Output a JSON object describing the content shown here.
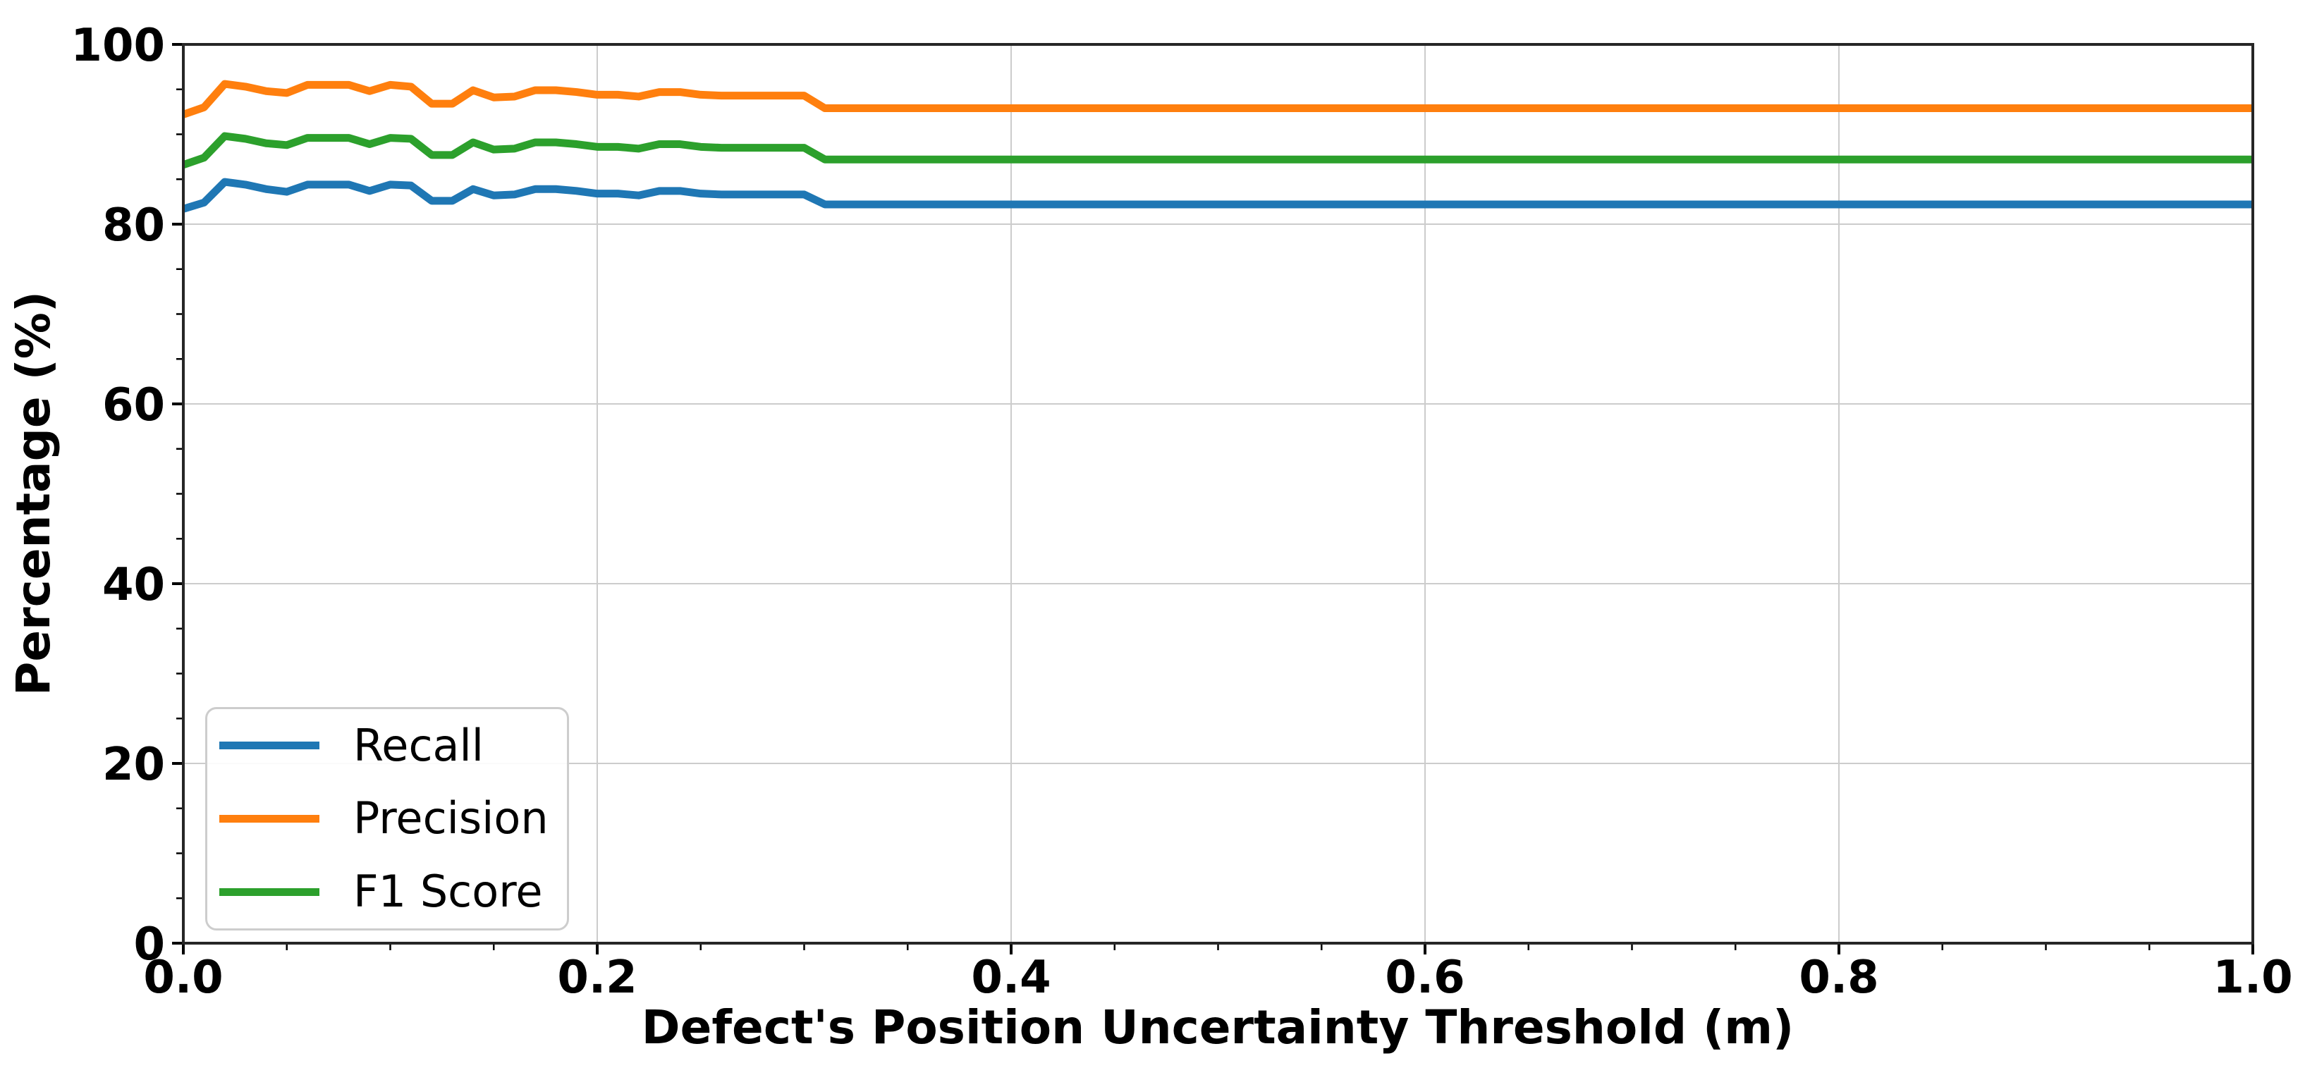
{
  "chart_data": {
    "type": "line",
    "title": "",
    "xlabel": "Defect's Position Uncertainty Threshold (m)",
    "ylabel": "Percentage (%)",
    "xlim": [
      0.0,
      1.0
    ],
    "ylim": [
      0,
      100
    ],
    "xticks": [
      0.0,
      0.2,
      0.4,
      0.6,
      0.8,
      1.0
    ],
    "xtick_labels": [
      "0.0",
      "0.2",
      "0.4",
      "0.6",
      "0.8",
      "1.0"
    ],
    "yticks": [
      0,
      20,
      40,
      60,
      80,
      100
    ],
    "ytick_labels": [
      "0",
      "20",
      "40",
      "60",
      "80",
      "100"
    ],
    "xtick_minor_step": 0.05,
    "ytick_minor_step": 5,
    "grid": "major gridlines both axes, light gray",
    "legend_position": "lower left",
    "x": [
      0.0,
      0.01,
      0.02,
      0.03,
      0.04,
      0.05,
      0.06,
      0.07,
      0.08,
      0.09,
      0.1,
      0.11,
      0.12,
      0.13,
      0.14,
      0.15,
      0.16,
      0.17,
      0.18,
      0.19,
      0.2,
      0.21,
      0.22,
      0.23,
      0.24,
      0.25,
      0.26,
      0.27,
      0.28,
      0.29,
      0.3,
      0.31,
      1.0
    ],
    "series": [
      {
        "name": "Recall",
        "color": "#1f77b4",
        "values": [
          81.7,
          82.4,
          84.7,
          84.4,
          83.9,
          83.6,
          84.4,
          84.4,
          84.4,
          83.7,
          84.4,
          84.3,
          82.6,
          82.6,
          83.9,
          83.2,
          83.3,
          83.9,
          83.9,
          83.7,
          83.4,
          83.4,
          83.2,
          83.7,
          83.7,
          83.4,
          83.3,
          83.3,
          83.3,
          83.3,
          83.3,
          82.2,
          82.2
        ]
      },
      {
        "name": "Precision",
        "color": "#ff7f0e",
        "values": [
          92.2,
          93.0,
          95.6,
          95.3,
          94.8,
          94.6,
          95.5,
          95.5,
          95.5,
          94.8,
          95.5,
          95.3,
          93.4,
          93.4,
          94.9,
          94.1,
          94.2,
          94.9,
          94.9,
          94.7,
          94.4,
          94.4,
          94.2,
          94.7,
          94.7,
          94.4,
          94.3,
          94.3,
          94.3,
          94.3,
          94.3,
          92.9,
          92.9
        ]
      },
      {
        "name": "F1 Score",
        "color": "#2ca02c",
        "values": [
          86.6,
          87.4,
          89.8,
          89.5,
          89.0,
          88.8,
          89.6,
          89.6,
          89.6,
          88.9,
          89.6,
          89.5,
          87.7,
          87.7,
          89.1,
          88.3,
          88.4,
          89.1,
          89.1,
          88.9,
          88.6,
          88.6,
          88.4,
          88.9,
          88.9,
          88.6,
          88.5,
          88.5,
          88.5,
          88.5,
          88.5,
          87.2,
          87.2
        ]
      }
    ]
  },
  "style": {
    "spine_color": "#262626",
    "grid_color": "#cccccc",
    "tick_color": "#000000",
    "line_width": 11
  }
}
